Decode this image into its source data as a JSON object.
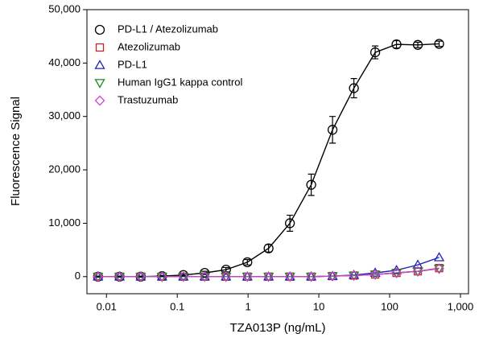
{
  "chart_data": {
    "type": "scatter",
    "x_scale": "log",
    "x_label": "TZA013P (ng/mL)",
    "y_label": "Fluorescence Signal",
    "x": [
      0.0076,
      0.0153,
      0.0305,
      0.061,
      0.122,
      0.244,
      0.488,
      0.977,
      1.95,
      3.9,
      7.8,
      15.6,
      31.25,
      62.5,
      125,
      250,
      500
    ],
    "series": [
      {
        "name": "PD-L1 / Atezolizumab",
        "color": "#000000",
        "marker": "circle",
        "values": [
          0,
          0,
          0,
          100,
          300,
          700,
          1300,
          2700,
          5300,
          10000,
          17200,
          27500,
          35300,
          42000,
          43500,
          43400,
          43600
        ],
        "errors": [
          100,
          100,
          100,
          100,
          200,
          300,
          400,
          500,
          700,
          1500,
          2000,
          2500,
          1800,
          1200,
          700,
          500,
          500
        ]
      },
      {
        "name": "Atezolizumab",
        "color": "#cc2222",
        "marker": "square",
        "values": [
          0,
          0,
          0,
          0,
          0,
          0,
          0,
          0,
          0,
          0,
          0,
          100,
          200,
          400,
          700,
          1000,
          1600
        ]
      },
      {
        "name": "PD-L1",
        "color": "#2222bb",
        "marker": "triangle-up",
        "values": [
          0,
          0,
          0,
          0,
          0,
          0,
          0,
          0,
          0,
          0,
          0,
          100,
          300,
          700,
          1200,
          2200,
          3600
        ]
      },
      {
        "name": "Human IgG1 kappa control",
        "color": "#1a8a1a",
        "marker": "triangle-down",
        "values": [
          0,
          0,
          0,
          0,
          0,
          0,
          0,
          0,
          0,
          0,
          0,
          100,
          200,
          400,
          700,
          1000,
          1500
        ]
      },
      {
        "name": "Trastuzumab",
        "color": "#cc44cc",
        "marker": "diamond",
        "values": [
          0,
          0,
          0,
          0,
          0,
          0,
          0,
          0,
          0,
          0,
          0,
          100,
          200,
          400,
          700,
          1000,
          1500
        ]
      }
    ],
    "xlim": [
      0.0053,
      1300
    ],
    "xticks": [
      0.01,
      0.1,
      1,
      10,
      100,
      {
        "value": 1000,
        "label": "1,000"
      }
    ],
    "ylim": [
      -3200,
      50000
    ],
    "yticks": [
      0,
      {
        "value": 10000,
        "label": "10,000"
      },
      {
        "value": 20000,
        "label": "20,000"
      },
      {
        "value": 30000,
        "label": "30,000"
      },
      {
        "value": 40000,
        "label": "40,000"
      },
      {
        "value": 50000,
        "label": "50,000"
      }
    ],
    "legend": "upper left"
  }
}
